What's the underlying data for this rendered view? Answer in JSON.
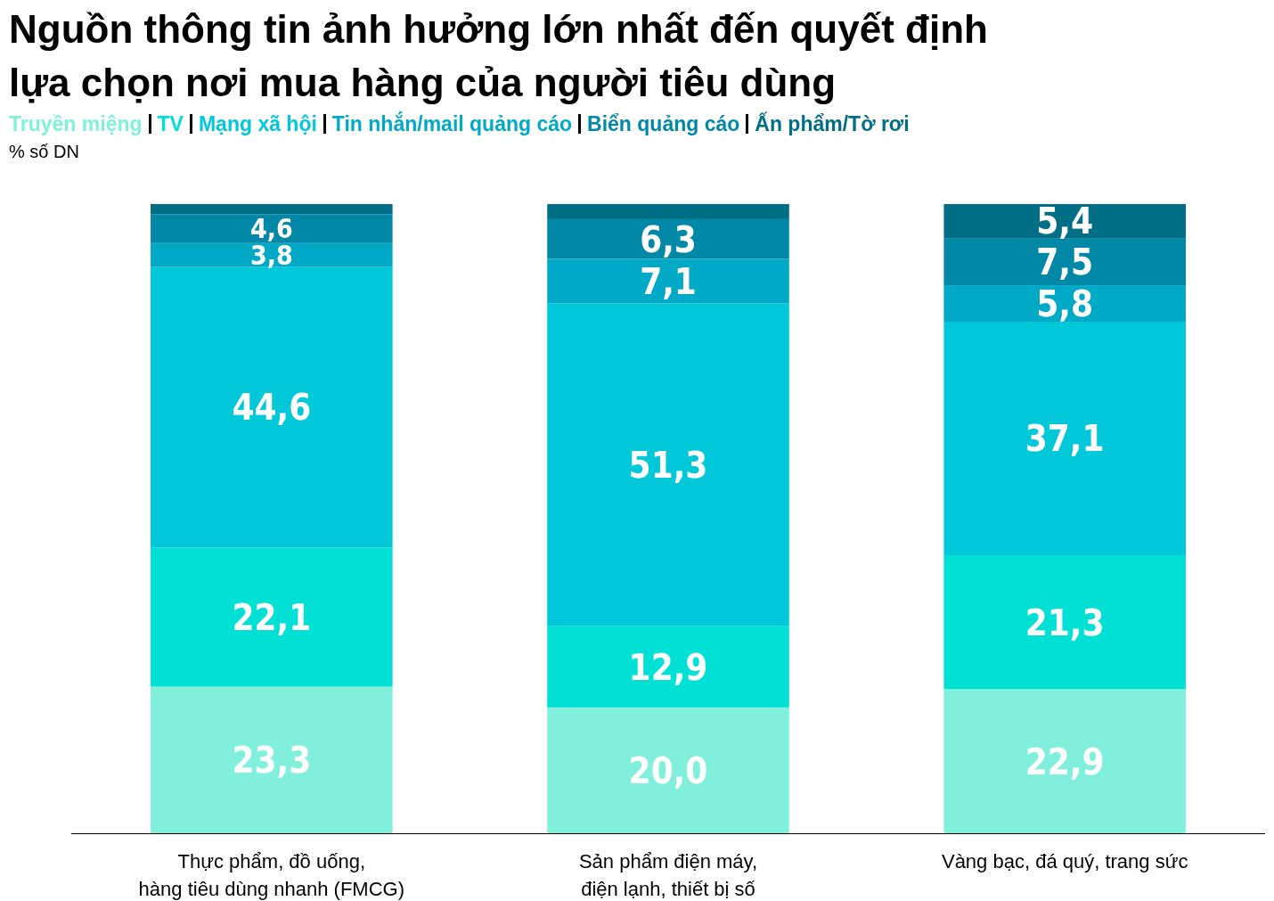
{
  "chart_data": {
    "type": "bar",
    "stacked": true,
    "title": "Nguồn thông tin ảnh hưởng lớn nhất đến quyết định\nlựa chọn nơi mua hàng của người tiêu dùng",
    "ylabel": "% số DN",
    "legend": "top left",
    "ylim": [
      0,
      100
    ],
    "categories": [
      "Thực phẩm, đồ uống,\nhàng tiêu dùng nhanh (FMCG)",
      "Sản phẩm điện máy,\nđiện lạnh, thiết bị số",
      "Vàng bạc, đá quý, trang sức"
    ],
    "series": [
      {
        "name": "Truyền miệng",
        "color": "#80f0dc",
        "values": [
          23.3,
          20.0,
          22.9
        ],
        "value_labels": [
          "23,3",
          "20,0",
          "22,9"
        ]
      },
      {
        "name": "TV",
        "color": "#00e0d4",
        "values": [
          22.1,
          12.9,
          21.3
        ],
        "value_labels": [
          "22,1",
          "12,9",
          "21,3"
        ]
      },
      {
        "name": "Mạng xã hội",
        "color": "#00c8d8",
        "values": [
          44.6,
          51.3,
          37.1
        ],
        "value_labels": [
          "44,6",
          "51,3",
          "37,1"
        ]
      },
      {
        "name": "Tin nhắn/mail quảng cáo",
        "color": "#00aac6",
        "values": [
          3.8,
          7.1,
          5.8
        ],
        "value_labels": [
          "3,8",
          "7,1",
          "5,8"
        ]
      },
      {
        "name": "Biển quảng cáo",
        "color": "#0088a6",
        "values": [
          4.6,
          6.3,
          7.5
        ],
        "value_labels": [
          "4,6",
          "6,3",
          "7,5"
        ]
      },
      {
        "name": "Ấn phẩm/Tờ rơi",
        "color": "#006f85",
        "values": [
          1.6,
          2.4,
          5.4
        ],
        "value_labels": [
          null,
          null,
          "5,4"
        ]
      }
    ]
  }
}
